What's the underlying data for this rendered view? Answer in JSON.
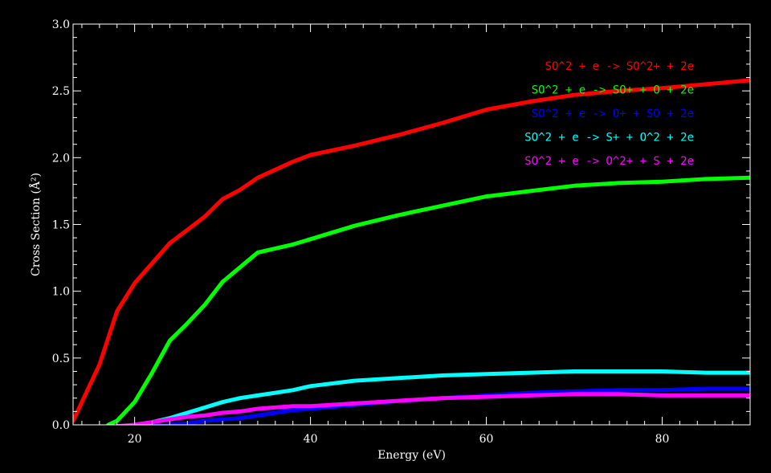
{
  "chart_data": {
    "type": "line",
    "title": "",
    "xlabel": "Energy (eV)",
    "ylabel": "Cross Section (Å²)",
    "xlim": [
      13,
      90
    ],
    "ylim": [
      0,
      3.0
    ],
    "xticks": [
      20,
      40,
      60,
      80
    ],
    "xtick_labels": [
      "20",
      "40",
      "60",
      "80"
    ],
    "yticks": [
      0,
      0.5,
      1.0,
      1.5,
      2.0,
      2.5,
      3.0
    ],
    "ytick_labels": [
      "0.0",
      "0.5",
      "1.0",
      "1.5",
      "2.0",
      "2.5",
      "3.0"
    ],
    "grid": false,
    "legend_position": "top-right",
    "background_color": "#000000",
    "axis_color": "#ffffff",
    "series": [
      {
        "name": "SO^2 + e -> SO^2+ + 2e",
        "color": "#ff0000",
        "points": [
          [
            13,
            0.03
          ],
          [
            16,
            0.45
          ],
          [
            18,
            0.85
          ],
          [
            20,
            1.06
          ],
          [
            22,
            1.21
          ],
          [
            24,
            1.36
          ],
          [
            26,
            1.46
          ],
          [
            28,
            1.56
          ],
          [
            30,
            1.69
          ],
          [
            32,
            1.76
          ],
          [
            34,
            1.85
          ],
          [
            36,
            1.91
          ],
          [
            38,
            1.97
          ],
          [
            40,
            2.02
          ],
          [
            45,
            2.09
          ],
          [
            50,
            2.17
          ],
          [
            55,
            2.26
          ],
          [
            60,
            2.36
          ],
          [
            65,
            2.42
          ],
          [
            70,
            2.47
          ],
          [
            75,
            2.5
          ],
          [
            80,
            2.52
          ],
          [
            85,
            2.55
          ],
          [
            90,
            2.58
          ]
        ]
      },
      {
        "name": "SO^2 + e -> SO+ + O + 2e",
        "color": "#00ff00",
        "points": [
          [
            17,
            0.0
          ],
          [
            18,
            0.03
          ],
          [
            20,
            0.17
          ],
          [
            22,
            0.39
          ],
          [
            24,
            0.63
          ],
          [
            26,
            0.76
          ],
          [
            28,
            0.9
          ],
          [
            30,
            1.07
          ],
          [
            32,
            1.18
          ],
          [
            34,
            1.29
          ],
          [
            36,
            1.32
          ],
          [
            38,
            1.35
          ],
          [
            40,
            1.39
          ],
          [
            45,
            1.49
          ],
          [
            50,
            1.57
          ],
          [
            55,
            1.64
          ],
          [
            60,
            1.71
          ],
          [
            65,
            1.75
          ],
          [
            70,
            1.79
          ],
          [
            75,
            1.81
          ],
          [
            80,
            1.82
          ],
          [
            85,
            1.84
          ],
          [
            90,
            1.85
          ]
        ]
      },
      {
        "name": "SO^2 + e -> O+ + SO + 2e",
        "color": "#0000ff",
        "points": [
          [
            20,
            -0.02
          ],
          [
            22,
            -0.01
          ],
          [
            24,
            0.0
          ],
          [
            26,
            0.01
          ],
          [
            28,
            0.03
          ],
          [
            30,
            0.04
          ],
          [
            32,
            0.05
          ],
          [
            34,
            0.07
          ],
          [
            36,
            0.09
          ],
          [
            38,
            0.11
          ],
          [
            40,
            0.12
          ],
          [
            45,
            0.15
          ],
          [
            50,
            0.18
          ],
          [
            55,
            0.2
          ],
          [
            60,
            0.22
          ],
          [
            65,
            0.24
          ],
          [
            70,
            0.25
          ],
          [
            75,
            0.26
          ],
          [
            80,
            0.26
          ],
          [
            85,
            0.27
          ],
          [
            90,
            0.27
          ]
        ]
      },
      {
        "name": "SO^2 + e -> S+ + O^2 + 2e",
        "color": "#00ffff",
        "points": [
          [
            20,
            0.0
          ],
          [
            22,
            0.02
          ],
          [
            24,
            0.05
          ],
          [
            26,
            0.09
          ],
          [
            28,
            0.13
          ],
          [
            30,
            0.17
          ],
          [
            32,
            0.2
          ],
          [
            34,
            0.22
          ],
          [
            36,
            0.24
          ],
          [
            38,
            0.26
          ],
          [
            40,
            0.29
          ],
          [
            45,
            0.33
          ],
          [
            50,
            0.35
          ],
          [
            55,
            0.37
          ],
          [
            60,
            0.38
          ],
          [
            65,
            0.39
          ],
          [
            70,
            0.4
          ],
          [
            75,
            0.4
          ],
          [
            80,
            0.4
          ],
          [
            85,
            0.39
          ],
          [
            90,
            0.39
          ]
        ]
      },
      {
        "name": "SO^2 + e -> O^2+ + S + 2e",
        "color": "#ff00ff",
        "points": [
          [
            18,
            -0.01
          ],
          [
            20,
            0.0
          ],
          [
            22,
            0.02
          ],
          [
            24,
            0.04
          ],
          [
            26,
            0.06
          ],
          [
            28,
            0.07
          ],
          [
            30,
            0.09
          ],
          [
            32,
            0.1
          ],
          [
            34,
            0.12
          ],
          [
            36,
            0.13
          ],
          [
            38,
            0.14
          ],
          [
            40,
            0.14
          ],
          [
            45,
            0.16
          ],
          [
            50,
            0.18
          ],
          [
            55,
            0.2
          ],
          [
            60,
            0.21
          ],
          [
            65,
            0.22
          ],
          [
            70,
            0.23
          ],
          [
            75,
            0.23
          ],
          [
            80,
            0.22
          ],
          [
            85,
            0.22
          ],
          [
            90,
            0.22
          ]
        ]
      }
    ]
  }
}
